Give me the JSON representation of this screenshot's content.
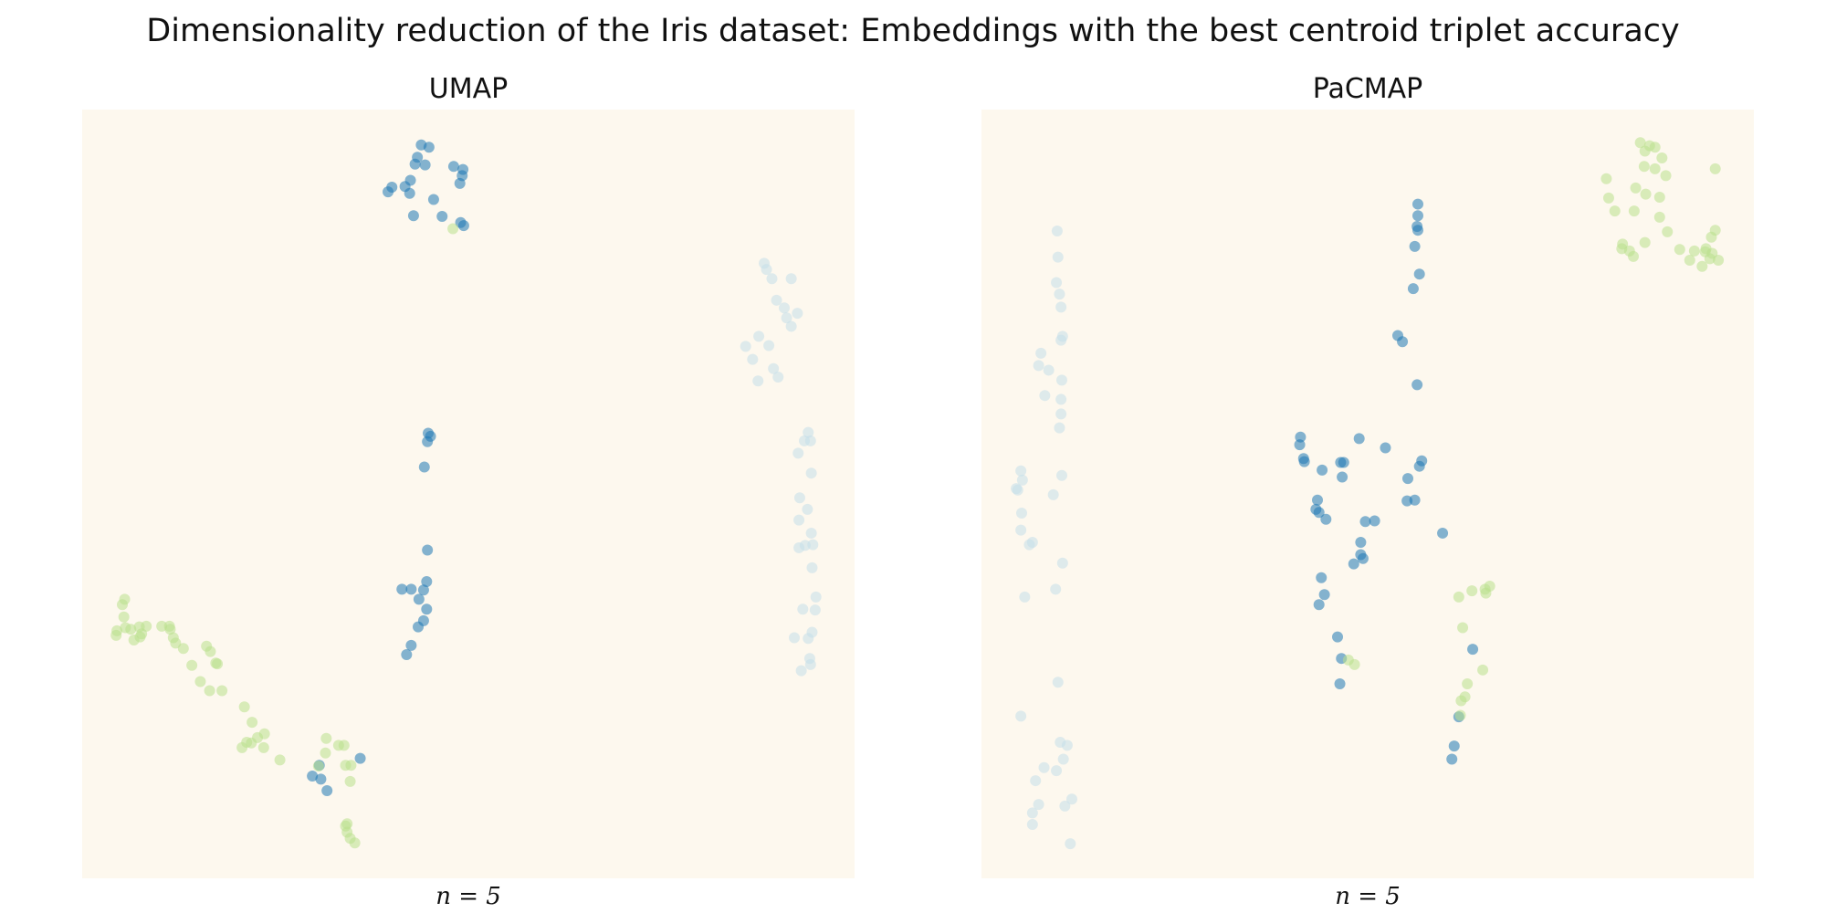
{
  "figure": {
    "title": "Dimensionality reduction of the Iris dataset: Embeddings with the best centroid triplet accuracy",
    "background": "#ffffff",
    "panel_background": "#fdf8ee"
  },
  "series_colors": [
    "#c5dfea",
    "#1f78b4",
    "#b9e08c"
  ],
  "point_opacity": 0.55,
  "chart_data": [
    {
      "type": "scatter",
      "title": "UMAP",
      "xlabel": "n = 5",
      "ylabel": "",
      "xlim": [
        0,
        100
      ],
      "ylim": [
        0,
        100
      ],
      "axes_visible": false,
      "grid": false,
      "series": [
        {
          "points": [
            [
              88.3,
              80.0
            ],
            [
              88.6,
              79.2
            ],
            [
              89.3,
              78.0
            ],
            [
              89.9,
              75.2
            ],
            [
              90.9,
              74.2
            ],
            [
              91.2,
              72.9
            ],
            [
              91.8,
              71.8
            ],
            [
              88.9,
              69.3
            ],
            [
              87.6,
              70.5
            ],
            [
              85.9,
              69.2
            ],
            [
              86.8,
              67.5
            ],
            [
              87.5,
              64.7
            ],
            [
              89.5,
              66.3
            ],
            [
              90.1,
              65.2
            ],
            [
              92.6,
              73.5
            ],
            [
              91.8,
              78.0
            ],
            [
              94.0,
              58.0
            ],
            [
              94.3,
              56.9
            ],
            [
              93.5,
              56.9
            ],
            [
              92.7,
              55.3
            ],
            [
              94.4,
              52.7
            ],
            [
              92.9,
              49.5
            ],
            [
              93.9,
              48.0
            ],
            [
              92.8,
              46.6
            ],
            [
              94.4,
              44.9
            ],
            [
              94.6,
              43.4
            ],
            [
              93.6,
              43.3
            ],
            [
              92.8,
              43.0
            ],
            [
              94.5,
              40.4
            ],
            [
              95.0,
              36.6
            ],
            [
              94.9,
              34.9
            ],
            [
              93.3,
              35.0
            ],
            [
              94.5,
              32.0
            ],
            [
              94.0,
              31.2
            ],
            [
              92.2,
              31.3
            ],
            [
              94.2,
              28.6
            ],
            [
              93.1,
              27.0
            ],
            [
              94.3,
              27.8
            ]
          ]
        },
        {
          "points": [
            [
              43.9,
              95.4
            ],
            [
              44.9,
              95.1
            ],
            [
              43.4,
              93.8
            ],
            [
              44.4,
              92.8
            ],
            [
              43.1,
              92.9
            ],
            [
              48.1,
              92.6
            ],
            [
              49.3,
              92.2
            ],
            [
              49.2,
              91.4
            ],
            [
              48.9,
              90.4
            ],
            [
              42.5,
              90.8
            ],
            [
              41.8,
              90.0
            ],
            [
              40.1,
              89.9
            ],
            [
              39.6,
              89.3
            ],
            [
              42.4,
              89.1
            ],
            [
              45.5,
              88.3
            ],
            [
              42.9,
              86.2
            ],
            [
              46.6,
              86.1
            ],
            [
              49.0,
              85.3
            ],
            [
              49.4,
              84.9
            ],
            [
              44.8,
              57.9
            ],
            [
              45.1,
              57.5
            ],
            [
              44.7,
              56.8
            ],
            [
              44.3,
              53.5
            ],
            [
              44.7,
              42.7
            ],
            [
              44.6,
              38.6
            ],
            [
              41.4,
              37.6
            ],
            [
              42.6,
              37.6
            ],
            [
              44.2,
              37.5
            ],
            [
              43.6,
              36.3
            ],
            [
              44.6,
              35.0
            ],
            [
              44.2,
              33.5
            ],
            [
              43.5,
              32.7
            ],
            [
              42.6,
              30.3
            ],
            [
              42.0,
              29.1
            ],
            [
              36.0,
              15.6
            ],
            [
              30.7,
              14.7
            ],
            [
              30.9,
              12.9
            ],
            [
              29.8,
              13.3
            ],
            [
              31.7,
              11.4
            ]
          ]
        },
        {
          "points": [
            [
              48.0,
              84.5
            ],
            [
              5.5,
              36.3
            ],
            [
              5.2,
              35.6
            ],
            [
              5.4,
              34.0
            ],
            [
              5.6,
              32.6
            ],
            [
              4.5,
              32.2
            ],
            [
              6.3,
              32.4
            ],
            [
              7.4,
              32.7
            ],
            [
              8.3,
              32.8
            ],
            [
              10.3,
              32.8
            ],
            [
              11.4,
              32.4
            ],
            [
              11.3,
              32.8
            ],
            [
              7.7,
              31.8
            ],
            [
              6.7,
              31.0
            ],
            [
              4.4,
              31.6
            ],
            [
              7.5,
              31.4
            ],
            [
              11.8,
              31.3
            ],
            [
              12.1,
              30.6
            ],
            [
              13.1,
              29.9
            ],
            [
              16.1,
              30.2
            ],
            [
              16.6,
              29.5
            ],
            [
              17.5,
              27.9
            ],
            [
              17.3,
              28.0
            ],
            [
              14.2,
              27.7
            ],
            [
              15.3,
              25.6
            ],
            [
              16.5,
              24.4
            ],
            [
              18.1,
              24.4
            ],
            [
              21.0,
              22.3
            ],
            [
              22.0,
              20.3
            ],
            [
              23.6,
              18.8
            ],
            [
              22.7,
              18.3
            ],
            [
              21.9,
              17.6
            ],
            [
              21.3,
              17.7
            ],
            [
              20.7,
              17.0
            ],
            [
              23.5,
              17.0
            ],
            [
              25.6,
              15.4
            ],
            [
              31.6,
              18.2
            ],
            [
              33.2,
              17.3
            ],
            [
              33.9,
              17.3
            ],
            [
              31.5,
              16.3
            ],
            [
              30.6,
              14.6
            ],
            [
              34.1,
              14.7
            ],
            [
              34.8,
              14.7
            ],
            [
              34.7,
              12.6
            ],
            [
              34.3,
              7.1
            ],
            [
              34.1,
              6.8
            ],
            [
              34.3,
              6.0
            ],
            [
              34.7,
              5.2
            ],
            [
              35.3,
              4.6
            ]
          ]
        }
      ]
    },
    {
      "type": "scatter",
      "title": "PaCMAP",
      "xlabel": "n = 5",
      "ylabel": "",
      "xlim": [
        0,
        100
      ],
      "ylim": [
        0,
        100
      ],
      "axes_visible": false,
      "grid": false,
      "series": [
        {
          "points": [
            [
              9.8,
              84.2
            ],
            [
              9.9,
              80.8
            ],
            [
              9.7,
              77.5
            ],
            [
              10.1,
              76.0
            ],
            [
              10.3,
              74.3
            ],
            [
              10.5,
              70.5
            ],
            [
              10.3,
              70.0
            ],
            [
              7.7,
              68.3
            ],
            [
              7.4,
              66.7
            ],
            [
              8.7,
              66.1
            ],
            [
              10.4,
              64.8
            ],
            [
              8.2,
              62.8
            ],
            [
              10.3,
              62.3
            ],
            [
              10.3,
              60.4
            ],
            [
              10.1,
              58.6
            ],
            [
              5.1,
              53.0
            ],
            [
              5.3,
              51.8
            ],
            [
              4.5,
              50.7
            ],
            [
              4.7,
              50.5
            ],
            [
              10.4,
              52.4
            ],
            [
              9.3,
              49.9
            ],
            [
              5.2,
              47.5
            ],
            [
              5.1,
              45.3
            ],
            [
              6.6,
              43.7
            ],
            [
              6.2,
              43.4
            ],
            [
              10.5,
              41.0
            ],
            [
              9.6,
              37.6
            ],
            [
              5.6,
              36.6
            ],
            [
              9.9,
              25.5
            ],
            [
              5.1,
              21.1
            ],
            [
              10.2,
              17.7
            ],
            [
              11.1,
              17.3
            ],
            [
              10.6,
              15.5
            ],
            [
              8.1,
              14.4
            ],
            [
              9.7,
              14.0
            ],
            [
              7.0,
              12.7
            ],
            [
              11.7,
              10.3
            ],
            [
              7.4,
              9.6
            ],
            [
              10.8,
              9.4
            ],
            [
              6.6,
              8.5
            ],
            [
              6.6,
              7.0
            ],
            [
              11.5,
              4.5
            ]
          ]
        },
        {
          "points": [
            [
              56.5,
              87.7
            ],
            [
              56.5,
              86.2
            ],
            [
              56.4,
              84.8
            ],
            [
              56.5,
              84.3
            ],
            [
              56.1,
              82.2
            ],
            [
              56.7,
              78.6
            ],
            [
              55.9,
              76.7
            ],
            [
              53.9,
              70.6
            ],
            [
              54.5,
              69.8
            ],
            [
              56.4,
              64.2
            ],
            [
              41.3,
              57.4
            ],
            [
              41.2,
              56.4
            ],
            [
              48.9,
              57.2
            ],
            [
              52.3,
              56.0
            ],
            [
              41.7,
              54.6
            ],
            [
              41.8,
              54.2
            ],
            [
              46.5,
              54.1
            ],
            [
              46.9,
              54.1
            ],
            [
              44.1,
              53.1
            ],
            [
              46.7,
              52.2
            ],
            [
              57.0,
              54.3
            ],
            [
              56.7,
              53.6
            ],
            [
              55.2,
              52.0
            ],
            [
              55.1,
              49.1
            ],
            [
              56.1,
              49.2
            ],
            [
              43.5,
              49.2
            ],
            [
              43.7,
              47.6
            ],
            [
              44.6,
              46.7
            ],
            [
              49.7,
              46.4
            ],
            [
              50.9,
              46.5
            ],
            [
              43.3,
              48.0
            ],
            [
              59.7,
              44.9
            ],
            [
              49.1,
              43.7
            ],
            [
              49.1,
              42.1
            ],
            [
              49.4,
              41.6
            ],
            [
              48.2,
              40.9
            ],
            [
              44.0,
              39.1
            ],
            [
              44.4,
              36.9
            ],
            [
              43.7,
              35.6
            ],
            [
              46.1,
              31.4
            ],
            [
              46.6,
              28.6
            ],
            [
              46.4,
              25.3
            ],
            [
              63.6,
              29.8
            ],
            [
              61.8,
              21.0
            ],
            [
              61.2,
              17.2
            ],
            [
              60.9,
              15.5
            ]
          ]
        },
        {
          "points": [
            [
              85.3,
              95.7
            ],
            [
              86.5,
              95.3
            ],
            [
              87.2,
              95.1
            ],
            [
              85.9,
              94.6
            ],
            [
              88.1,
              93.7
            ],
            [
              85.8,
              92.6
            ],
            [
              87.2,
              92.3
            ],
            [
              88.6,
              91.4
            ],
            [
              95.0,
              92.3
            ],
            [
              80.9,
              91.0
            ],
            [
              84.7,
              89.8
            ],
            [
              86.0,
              89.0
            ],
            [
              87.8,
              88.6
            ],
            [
              81.2,
              88.5
            ],
            [
              84.5,
              86.8
            ],
            [
              87.8,
              86.0
            ],
            [
              82.0,
              86.8
            ],
            [
              95.0,
              84.3
            ],
            [
              88.8,
              84.1
            ],
            [
              94.5,
              83.4
            ],
            [
              85.9,
              82.7
            ],
            [
              83.0,
              82.5
            ],
            [
              82.9,
              81.9
            ],
            [
              83.9,
              81.6
            ],
            [
              90.4,
              81.8
            ],
            [
              92.3,
              81.6
            ],
            [
              93.7,
              81.5
            ],
            [
              94.3,
              80.6
            ],
            [
              94.6,
              81.3
            ],
            [
              95.4,
              80.4
            ],
            [
              93.3,
              79.6
            ],
            [
              91.7,
              80.4
            ],
            [
              93.8,
              81.9
            ],
            [
              84.4,
              80.9
            ],
            [
              63.5,
              37.4
            ],
            [
              65.2,
              37.6
            ],
            [
              65.8,
              38.0
            ],
            [
              65.3,
              37.1
            ],
            [
              61.8,
              36.6
            ],
            [
              62.3,
              32.6
            ],
            [
              47.5,
              28.4
            ],
            [
              48.3,
              27.8
            ],
            [
              64.9,
              27.1
            ],
            [
              62.9,
              25.3
            ],
            [
              62.6,
              23.6
            ],
            [
              62.1,
              23.1
            ],
            [
              62.0,
              21.2
            ]
          ]
        }
      ]
    }
  ]
}
